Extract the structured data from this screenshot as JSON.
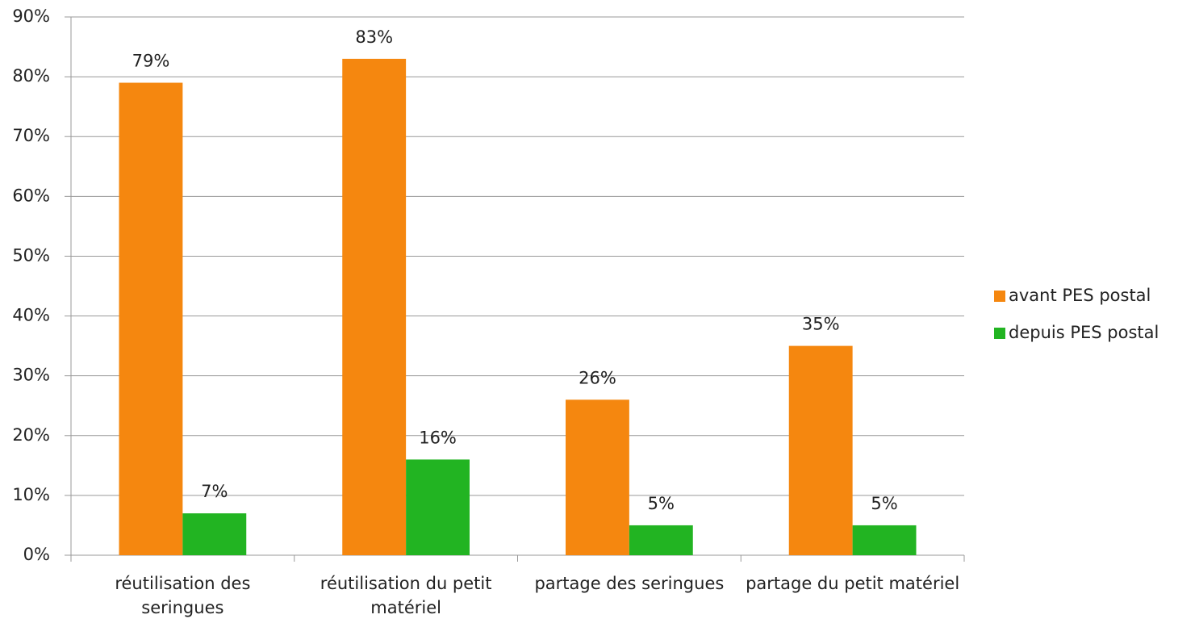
{
  "chart_data": {
    "type": "bar",
    "categories": [
      "réutilisation des seringues",
      "réutilisation du petit matériel",
      "partage des seringues",
      "partage du petit matériel"
    ],
    "series": [
      {
        "name": "avant PES postal",
        "color": "#f5870f",
        "values": [
          79,
          83,
          26,
          35
        ],
        "value_labels": [
          "79%",
          "83%",
          "26%",
          "35%"
        ]
      },
      {
        "name": "depuis PES postal",
        "color": "#22b422",
        "values": [
          7,
          16,
          5,
          5
        ],
        "value_labels": [
          "7%",
          "16%",
          "5%",
          "5%"
        ]
      }
    ],
    "ylim": [
      0,
      90
    ],
    "yticks": [
      {
        "value": 0,
        "label": "0%"
      },
      {
        "value": 10,
        "label": "10%"
      },
      {
        "value": 20,
        "label": "20%"
      },
      {
        "value": 30,
        "label": "30%"
      },
      {
        "value": 40,
        "label": "40%"
      },
      {
        "value": 50,
        "label": "50%"
      },
      {
        "value": 60,
        "label": "60%"
      },
      {
        "value": 70,
        "label": "70%"
      },
      {
        "value": 80,
        "label": "80%"
      },
      {
        "value": 90,
        "label": "90%"
      }
    ],
    "grid": true,
    "legend": "right"
  }
}
